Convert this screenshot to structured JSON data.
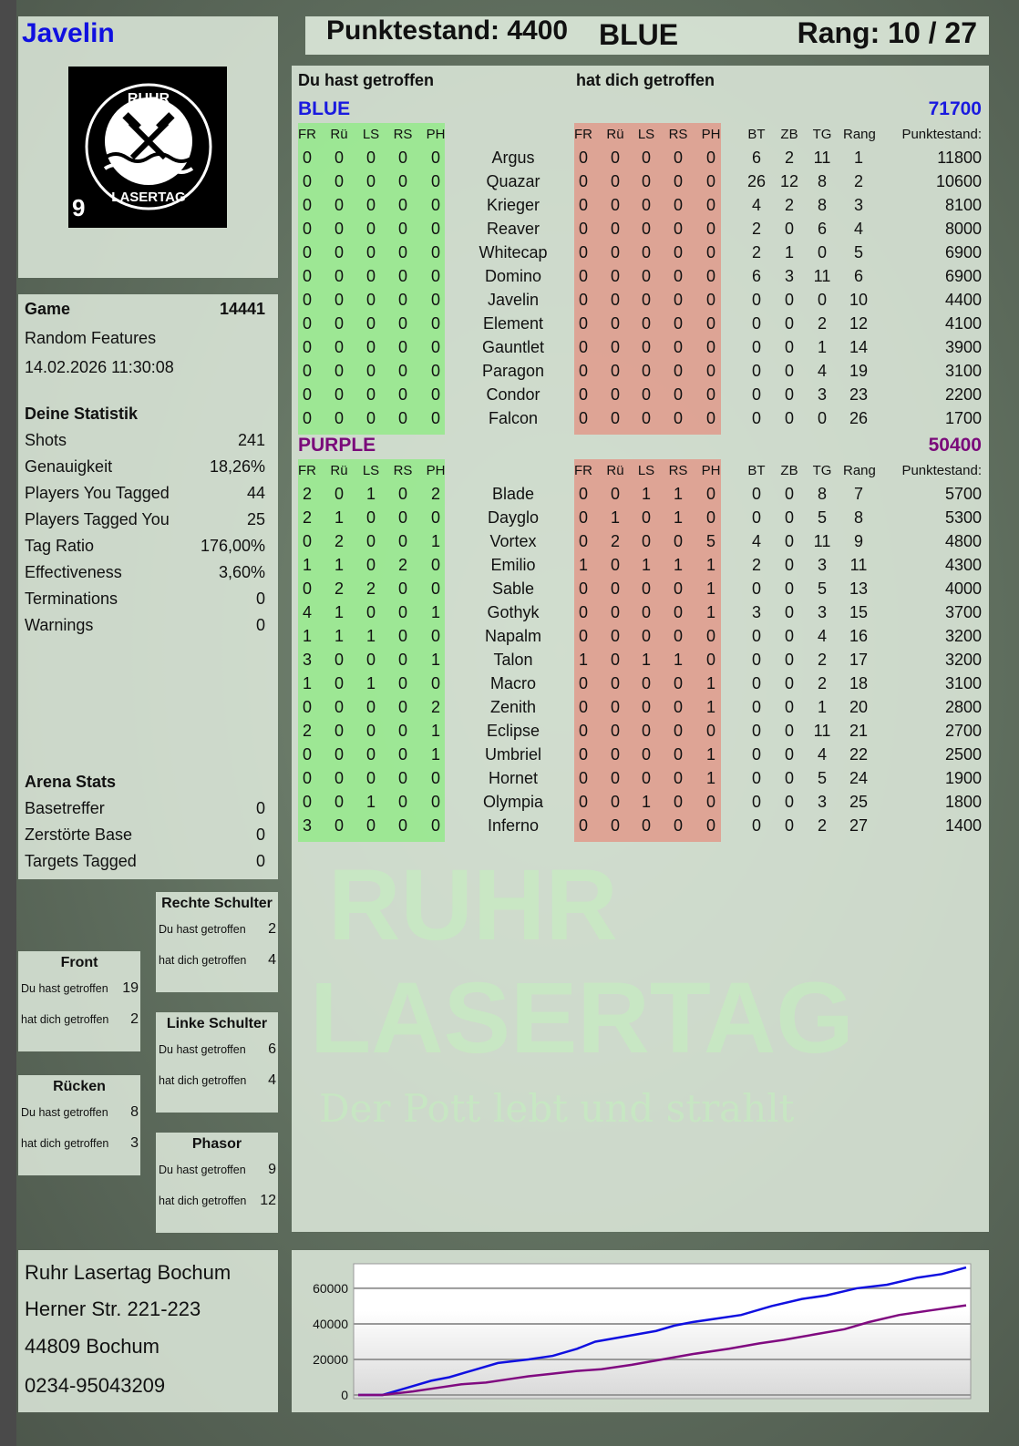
{
  "player": {
    "name": "Javelin",
    "score_label": "Punktestand: 4400",
    "team": "BLUE",
    "rank_label": "Rang: 10 / 27"
  },
  "logo": {
    "text": "RUHR LASERTAG",
    "number": "9"
  },
  "watermark": {
    "line1": "RUHR",
    "line2": "LASERTAG",
    "slogan": "Der Pott lebt und strahlt"
  },
  "columns": {
    "you_hit": "Du hast getroffen",
    "hit_you": "hat dich getroffen",
    "zones": [
      "FR",
      "Rü",
      "LS",
      "RS",
      "PH"
    ],
    "extra": [
      "BT",
      "ZB",
      "TG",
      "Rang"
    ],
    "score": "Punktestand:"
  },
  "teams": [
    {
      "name": "BLUE",
      "color": "#1a1adf",
      "score": "71700",
      "players": [
        {
          "name": "Argus",
          "hit": [
            0,
            0,
            0,
            0,
            0
          ],
          "got": [
            0,
            0,
            0,
            0,
            0
          ],
          "ex": [
            6,
            2,
            11,
            1
          ],
          "score": "11800"
        },
        {
          "name": "Quazar",
          "hit": [
            0,
            0,
            0,
            0,
            0
          ],
          "got": [
            0,
            0,
            0,
            0,
            0
          ],
          "ex": [
            26,
            12,
            8,
            2
          ],
          "score": "10600"
        },
        {
          "name": "Krieger",
          "hit": [
            0,
            0,
            0,
            0,
            0
          ],
          "got": [
            0,
            0,
            0,
            0,
            0
          ],
          "ex": [
            4,
            2,
            8,
            3
          ],
          "score": "8100"
        },
        {
          "name": "Reaver",
          "hit": [
            0,
            0,
            0,
            0,
            0
          ],
          "got": [
            0,
            0,
            0,
            0,
            0
          ],
          "ex": [
            2,
            0,
            6,
            4
          ],
          "score": "8000"
        },
        {
          "name": "Whitecap",
          "hit": [
            0,
            0,
            0,
            0,
            0
          ],
          "got": [
            0,
            0,
            0,
            0,
            0
          ],
          "ex": [
            2,
            1,
            0,
            5
          ],
          "score": "6900"
        },
        {
          "name": "Domino",
          "hit": [
            0,
            0,
            0,
            0,
            0
          ],
          "got": [
            0,
            0,
            0,
            0,
            0
          ],
          "ex": [
            6,
            3,
            11,
            6
          ],
          "score": "6900"
        },
        {
          "name": "Javelin",
          "hit": [
            0,
            0,
            0,
            0,
            0
          ],
          "got": [
            0,
            0,
            0,
            0,
            0
          ],
          "ex": [
            0,
            0,
            0,
            10
          ],
          "score": "4400"
        },
        {
          "name": "Element",
          "hit": [
            0,
            0,
            0,
            0,
            0
          ],
          "got": [
            0,
            0,
            0,
            0,
            0
          ],
          "ex": [
            0,
            0,
            2,
            12
          ],
          "score": "4100"
        },
        {
          "name": "Gauntlet",
          "hit": [
            0,
            0,
            0,
            0,
            0
          ],
          "got": [
            0,
            0,
            0,
            0,
            0
          ],
          "ex": [
            0,
            0,
            1,
            14
          ],
          "score": "3900"
        },
        {
          "name": "Paragon",
          "hit": [
            0,
            0,
            0,
            0,
            0
          ],
          "got": [
            0,
            0,
            0,
            0,
            0
          ],
          "ex": [
            0,
            0,
            4,
            19
          ],
          "score": "3100"
        },
        {
          "name": "Condor",
          "hit": [
            0,
            0,
            0,
            0,
            0
          ],
          "got": [
            0,
            0,
            0,
            0,
            0
          ],
          "ex": [
            0,
            0,
            3,
            23
          ],
          "score": "2200"
        },
        {
          "name": "Falcon",
          "hit": [
            0,
            0,
            0,
            0,
            0
          ],
          "got": [
            0,
            0,
            0,
            0,
            0
          ],
          "ex": [
            0,
            0,
            0,
            26
          ],
          "score": "1700"
        }
      ]
    },
    {
      "name": "PURPLE",
      "color": "#7a0a7a",
      "score": "50400",
      "players": [
        {
          "name": "Blade",
          "hit": [
            2,
            0,
            1,
            0,
            2
          ],
          "got": [
            0,
            0,
            1,
            1,
            0
          ],
          "ex": [
            0,
            0,
            8,
            7
          ],
          "score": "5700"
        },
        {
          "name": "Dayglo",
          "hit": [
            2,
            1,
            0,
            0,
            0
          ],
          "got": [
            0,
            1,
            0,
            1,
            0
          ],
          "ex": [
            0,
            0,
            5,
            8
          ],
          "score": "5300"
        },
        {
          "name": "Vortex",
          "hit": [
            0,
            2,
            0,
            0,
            1
          ],
          "got": [
            0,
            2,
            0,
            0,
            5
          ],
          "ex": [
            4,
            0,
            11,
            9
          ],
          "score": "4800"
        },
        {
          "name": "Emilio",
          "hit": [
            1,
            1,
            0,
            2,
            0
          ],
          "got": [
            1,
            0,
            1,
            1,
            1
          ],
          "ex": [
            2,
            0,
            3,
            11
          ],
          "score": "4300"
        },
        {
          "name": "Sable",
          "hit": [
            0,
            2,
            2,
            0,
            0
          ],
          "got": [
            0,
            0,
            0,
            0,
            1
          ],
          "ex": [
            0,
            0,
            5,
            13
          ],
          "score": "4000"
        },
        {
          "name": "Gothyk",
          "hit": [
            4,
            1,
            0,
            0,
            1
          ],
          "got": [
            0,
            0,
            0,
            0,
            1
          ],
          "ex": [
            3,
            0,
            3,
            15
          ],
          "score": "3700"
        },
        {
          "name": "Napalm",
          "hit": [
            1,
            1,
            1,
            0,
            0
          ],
          "got": [
            0,
            0,
            0,
            0,
            0
          ],
          "ex": [
            0,
            0,
            4,
            16
          ],
          "score": "3200"
        },
        {
          "name": "Talon",
          "hit": [
            3,
            0,
            0,
            0,
            1
          ],
          "got": [
            1,
            0,
            1,
            1,
            0
          ],
          "ex": [
            0,
            0,
            2,
            17
          ],
          "score": "3200"
        },
        {
          "name": "Macro",
          "hit": [
            1,
            0,
            1,
            0,
            0
          ],
          "got": [
            0,
            0,
            0,
            0,
            1
          ],
          "ex": [
            0,
            0,
            2,
            18
          ],
          "score": "3100"
        },
        {
          "name": "Zenith",
          "hit": [
            0,
            0,
            0,
            0,
            2
          ],
          "got": [
            0,
            0,
            0,
            0,
            1
          ],
          "ex": [
            0,
            0,
            1,
            20
          ],
          "score": "2800"
        },
        {
          "name": "Eclipse",
          "hit": [
            2,
            0,
            0,
            0,
            1
          ],
          "got": [
            0,
            0,
            0,
            0,
            0
          ],
          "ex": [
            0,
            0,
            11,
            21
          ],
          "score": "2700"
        },
        {
          "name": "Umbriel",
          "hit": [
            0,
            0,
            0,
            0,
            1
          ],
          "got": [
            0,
            0,
            0,
            0,
            1
          ],
          "ex": [
            0,
            0,
            4,
            22
          ],
          "score": "2500"
        },
        {
          "name": "Hornet",
          "hit": [
            0,
            0,
            0,
            0,
            0
          ],
          "got": [
            0,
            0,
            0,
            0,
            1
          ],
          "ex": [
            0,
            0,
            5,
            24
          ],
          "score": "1900"
        },
        {
          "name": "Olympia",
          "hit": [
            0,
            0,
            1,
            0,
            0
          ],
          "got": [
            0,
            0,
            1,
            0,
            0
          ],
          "ex": [
            0,
            0,
            3,
            25
          ],
          "score": "1800"
        },
        {
          "name": "Inferno",
          "hit": [
            3,
            0,
            0,
            0,
            0
          ],
          "got": [
            0,
            0,
            0,
            0,
            0
          ],
          "ex": [
            0,
            0,
            2,
            27
          ],
          "score": "1400"
        }
      ]
    }
  ],
  "game": {
    "label": "Game",
    "id": "14441",
    "mode": "Random Features",
    "datetime": "14.02.2026 11:30:08"
  },
  "stats": {
    "title": "Deine Statistik",
    "items": [
      {
        "label": "Shots",
        "value": "241"
      },
      {
        "label": "Genauigkeit",
        "value": "18,26%"
      },
      {
        "label": "Players You Tagged",
        "value": "44"
      },
      {
        "label": "Players Tagged You",
        "value": "25"
      },
      {
        "label": "Tag Ratio",
        "value": "176,00%"
      },
      {
        "label": "Effectiveness",
        "value": "3,60%"
      },
      {
        "label": "Terminations",
        "value": "0"
      },
      {
        "label": "Warnings",
        "value": "0"
      }
    ]
  },
  "arena": {
    "title": "Arena Stats",
    "items": [
      {
        "label": "Basetreffer",
        "value": "0"
      },
      {
        "label": "Zerstörte Base",
        "value": "0"
      },
      {
        "label": "Targets Tagged",
        "value": "0"
      }
    ]
  },
  "zones": [
    {
      "title": "Rechte Schulter",
      "you_hit_label": "Du hast getroffen",
      "you_hit": "2",
      "hit_you_label": "hat dich getroffen",
      "hit_you": "4"
    },
    {
      "title": "Front",
      "you_hit_label": "Du hast getroffen",
      "you_hit": "19",
      "hit_you_label": "hat dich getroffen",
      "hit_you": "2"
    },
    {
      "title": "Linke Schulter",
      "you_hit_label": "Du hast getroffen",
      "you_hit": "6",
      "hit_you_label": "hat dich getroffen",
      "hit_you": "4"
    },
    {
      "title": "Rücken",
      "you_hit_label": "Du hast getroffen",
      "you_hit": "8",
      "hit_you_label": "hat dich getroffen",
      "hit_you": "3"
    },
    {
      "title": "Phasor",
      "you_hit_label": "Du hast getroffen",
      "you_hit": "9",
      "hit_you_label": "hat dich getroffen",
      "hit_you": "12"
    }
  ],
  "address": {
    "lines": [
      "Ruhr Lasertag Bochum",
      "Herner Str. 221-223",
      "44809 Bochum",
      "0234-95043209"
    ]
  },
  "chart_data": {
    "type": "line",
    "grid": true,
    "ylim": [
      0,
      73800
    ],
    "yticks": [
      "0",
      "20000",
      "40000",
      "60000"
    ],
    "ytick_values": [
      0,
      20000,
      40000,
      60000
    ],
    "series": [
      {
        "color": "#1010e0",
        "x": [
          0,
          4,
          8,
          12,
          15,
          19,
          23,
          28,
          32,
          36,
          39,
          44,
          49,
          52,
          55,
          59,
          63,
          68,
          73,
          77,
          82,
          87,
          92,
          96,
          100
        ],
        "values": [
          0,
          0,
          4000,
          8000,
          10000,
          14000,
          18000,
          20000,
          22000,
          26000,
          30000,
          33000,
          36000,
          39000,
          41000,
          43000,
          45000,
          50000,
          54000,
          56000,
          60000,
          62000,
          66000,
          68000,
          71700
        ]
      },
      {
        "color": "#800a80",
        "x": [
          0,
          4,
          9,
          13,
          17,
          21,
          25,
          28,
          32,
          36,
          40,
          45,
          50,
          55,
          61,
          66,
          70,
          75,
          80,
          84,
          89,
          94,
          100
        ],
        "values": [
          0,
          0,
          2000,
          4000,
          6000,
          7000,
          9000,
          10500,
          12000,
          13500,
          14500,
          17000,
          20000,
          23000,
          26000,
          29000,
          31000,
          34000,
          37000,
          41000,
          45000,
          47500,
          50400
        ]
      }
    ]
  }
}
